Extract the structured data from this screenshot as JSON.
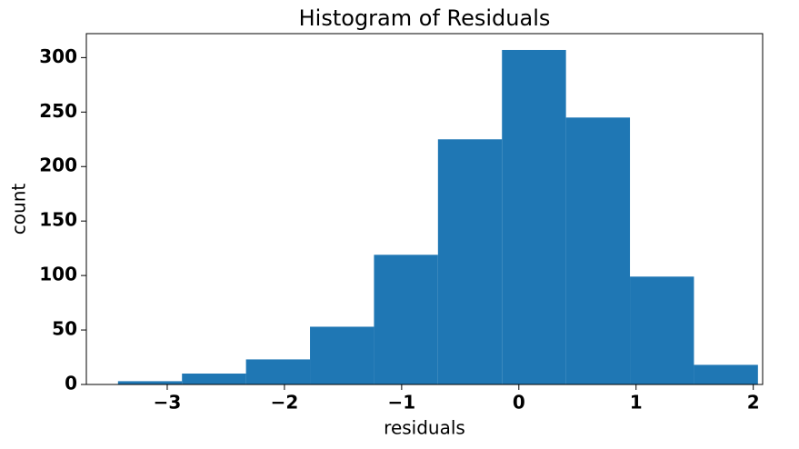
{
  "chart_data": {
    "type": "histogram",
    "title": "Histogram of Residuals",
    "x_label": "residuals",
    "y_label": "count",
    "bins": [
      -3.42,
      -2.874,
      -2.328,
      -1.782,
      -1.236,
      -0.69,
      -0.144,
      0.402,
      0.948,
      1.494,
      2.04
    ],
    "values": [
      3,
      10,
      23,
      53,
      119,
      225,
      307,
      245,
      99,
      18
    ],
    "color": "#1f77b4",
    "xlim": [
      -3.69,
      2.08
    ],
    "ylim": [
      0,
      322
    ],
    "xticks": [
      {
        "value": -3,
        "label": "−3"
      },
      {
        "value": -2,
        "label": "−2"
      },
      {
        "value": -1,
        "label": "−1"
      },
      0,
      1,
      2
    ],
    "yticks": [
      0,
      50,
      100,
      150,
      200,
      250,
      300
    ],
    "grid": false
  }
}
